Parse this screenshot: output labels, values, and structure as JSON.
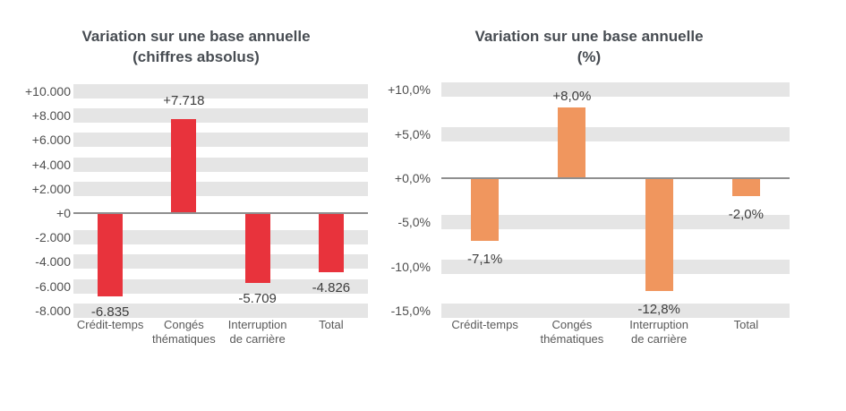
{
  "chart_data": [
    {
      "type": "bar",
      "title": "Variation sur une base annuelle (chiffres absolus)",
      "title_line1": "Variation sur une base annuelle",
      "title_line2": "(chiffres absolus)",
      "categories": [
        "Crédit-temps",
        "Congés\nthématiques",
        "Interruption\nde carrière",
        "Total"
      ],
      "values": [
        -6835,
        7718,
        -5709,
        -4826
      ],
      "value_labels": [
        "-6.835",
        "+7.718",
        "-5.709",
        "-4.826"
      ],
      "bar_color": "#e8333c",
      "yticks": [
        {
          "value": 10000,
          "label": "+10.000"
        },
        {
          "value": 8000,
          "label": "+8.000"
        },
        {
          "value": 6000,
          "label": "+6.000"
        },
        {
          "value": 4000,
          "label": "+4.000"
        },
        {
          "value": 2000,
          "label": "+2.000"
        },
        {
          "value": 0,
          "label": "+0"
        },
        {
          "value": -2000,
          "label": "-2.000"
        },
        {
          "value": -4000,
          "label": "-4.000"
        },
        {
          "value": -6000,
          "label": "-6.000"
        },
        {
          "value": -8000,
          "label": "-8.000"
        }
      ],
      "ylim": [
        -8600,
        10600
      ],
      "xlabel": "",
      "ylabel": "",
      "grid": "horizontal-bands",
      "grid_band_color": "#e5e5e5",
      "zero_line_color": "#8f8f8f",
      "legend": "none"
    },
    {
      "type": "bar",
      "title": "Variation sur une base annuelle (%)",
      "title_line1": "Variation sur une base annuelle",
      "title_line2": "(%)",
      "categories": [
        "Crédit-temps",
        "Congés\nthématiques",
        "Interruption\nde carrière",
        "Total"
      ],
      "values": [
        -7.1,
        8.0,
        -12.8,
        -2.0
      ],
      "value_labels": [
        "-7,1%",
        "+8,0%",
        "-12,8%",
        "-2,0%"
      ],
      "bar_color": "#f0965e",
      "yticks": [
        {
          "value": 10,
          "label": "+10,0%"
        },
        {
          "value": 5,
          "label": "+5,0%"
        },
        {
          "value": 0,
          "label": "+0,0%"
        },
        {
          "value": -5,
          "label": "-5,0%"
        },
        {
          "value": -10,
          "label": "-10,0%"
        },
        {
          "value": -15,
          "label": "-15,0%"
        }
      ],
      "ylim": [
        -15.9,
        10.9
      ],
      "xlabel": "",
      "ylabel": "",
      "grid": "horizontal-bands",
      "grid_band_color": "#e5e5e5",
      "zero_line_color": "#8f8f8f",
      "legend": "none"
    }
  ]
}
